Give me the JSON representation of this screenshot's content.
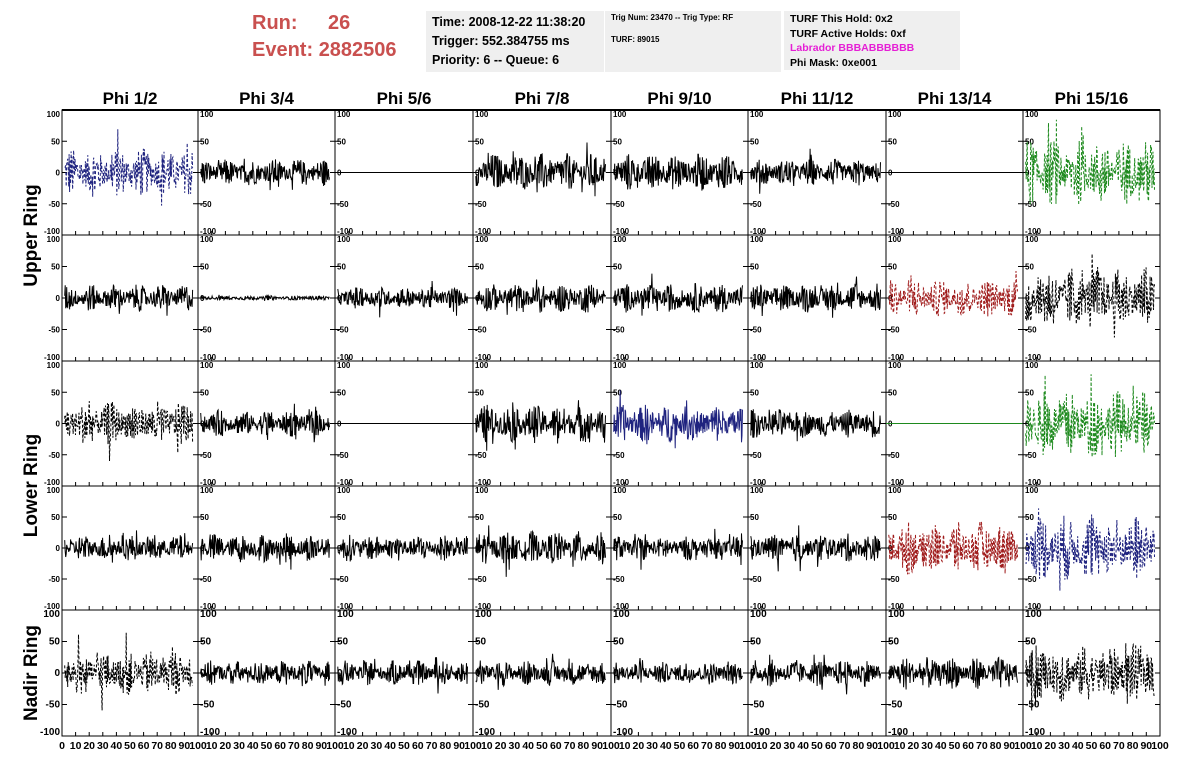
{
  "header": {
    "run_label": "Run:",
    "run_value": "26",
    "event_label": "Event:",
    "event_value": "2882506"
  },
  "info_box_1": {
    "time": "Time: 2008-12-22 11:38:20",
    "trigger": "Trigger: 552.384755 ms",
    "priority": "Priority: 6 -- Queue: 6"
  },
  "info_box_2": {
    "trig": "Trig Num: 23470 -- Trig Type: RF",
    "turf": "TURF: 89015"
  },
  "info_box_3": {
    "hold": "TURF This Hold: 0x2",
    "active": "TURF Active Holds: 0xf",
    "labrador": "Labrador BBBABBBBBB",
    "phimask": "Phi Mask: 0xe001"
  },
  "chart_data": {
    "type": "line",
    "title": "",
    "columns": [
      "Phi 1/2",
      "Phi 3/4",
      "Phi 5/6",
      "Phi 7/8",
      "Phi 9/10",
      "Phi 11/12",
      "Phi 13/14",
      "Phi 15/16"
    ],
    "ring_labels": [
      "Upper Ring",
      "Lower Ring",
      "Nadir Ring"
    ],
    "xlim": [
      0,
      100
    ],
    "ylim": [
      -100,
      100
    ],
    "y_ticks": [
      "100",
      "50",
      "0",
      "-50",
      "-100"
    ],
    "x_ticks": [
      "0",
      "10",
      "20",
      "30",
      "40",
      "50",
      "60",
      "70",
      "80",
      "90",
      "100"
    ],
    "grid": false,
    "colors": {
      "black": "#000000",
      "blue": "#1f237f",
      "green": "#1e8a1e",
      "red": "#a01c1c",
      "labrador": "#e51fd5",
      "run": "#c9504f"
    },
    "panels": [
      [
        {
          "color": "#1f237f",
          "style": "dashed",
          "amp": 22
        },
        {
          "color": "#000000",
          "style": "solid",
          "amp": 12
        },
        {
          "color": "#000000",
          "style": "flat",
          "amp": 0
        },
        {
          "color": "#000000",
          "style": "solid",
          "amp": 17
        },
        {
          "color": "#000000",
          "style": "solid",
          "amp": 17
        },
        {
          "color": "#000000",
          "style": "solid",
          "amp": 12
        },
        {
          "color": "#000000",
          "style": "flat",
          "amp": 0
        },
        {
          "color": "#1e8a1e",
          "style": "dashed",
          "amp": 30
        }
      ],
      [
        {
          "color": "#000000",
          "style": "solid",
          "amp": 12
        },
        {
          "color": "#000000",
          "style": "solid",
          "amp": 2
        },
        {
          "color": "#000000",
          "style": "solid",
          "amp": 10
        },
        {
          "color": "#000000",
          "style": "solid",
          "amp": 13
        },
        {
          "color": "#000000",
          "style": "solid",
          "amp": 13
        },
        {
          "color": "#000000",
          "style": "solid",
          "amp": 13
        },
        {
          "color": "#a01c1c",
          "style": "dashed",
          "amp": 17
        },
        {
          "color": "#000000",
          "style": "dashed",
          "amp": 28
        }
      ],
      [
        {
          "color": "#000000",
          "style": "dashed",
          "amp": 20
        },
        {
          "color": "#000000",
          "style": "solid",
          "amp": 12
        },
        {
          "color": "#000000",
          "style": "flat",
          "amp": 0
        },
        {
          "color": "#000000",
          "style": "solid",
          "amp": 17
        },
        {
          "color": "#1f237f",
          "style": "solid",
          "amp": 17
        },
        {
          "color": "#000000",
          "style": "solid",
          "amp": 13
        },
        {
          "color": "#1e8a1e",
          "style": "flat",
          "amp": 0
        },
        {
          "color": "#1e8a1e",
          "style": "dashed",
          "amp": 30
        }
      ],
      [
        {
          "color": "#000000",
          "style": "solid",
          "amp": 12
        },
        {
          "color": "#000000",
          "style": "solid",
          "amp": 13
        },
        {
          "color": "#000000",
          "style": "solid",
          "amp": 12
        },
        {
          "color": "#000000",
          "style": "solid",
          "amp": 15
        },
        {
          "color": "#000000",
          "style": "solid",
          "amp": 11
        },
        {
          "color": "#000000",
          "style": "solid",
          "amp": 13
        },
        {
          "color": "#a01c1c",
          "style": "dashed",
          "amp": 24
        },
        {
          "color": "#1f237f",
          "style": "dashed",
          "amp": 30
        }
      ],
      [
        {
          "color": "#000000",
          "style": "dashed",
          "amp": 20
        },
        {
          "color": "#000000",
          "style": "solid",
          "amp": 11
        },
        {
          "color": "#000000",
          "style": "solid",
          "amp": 11
        },
        {
          "color": "#000000",
          "style": "solid",
          "amp": 11
        },
        {
          "color": "#000000",
          "style": "solid",
          "amp": 10
        },
        {
          "color": "#000000",
          "style": "solid",
          "amp": 12
        },
        {
          "color": "#000000",
          "style": "solid",
          "amp": 14
        },
        {
          "color": "#000000",
          "style": "dashed",
          "amp": 26
        }
      ]
    ]
  }
}
